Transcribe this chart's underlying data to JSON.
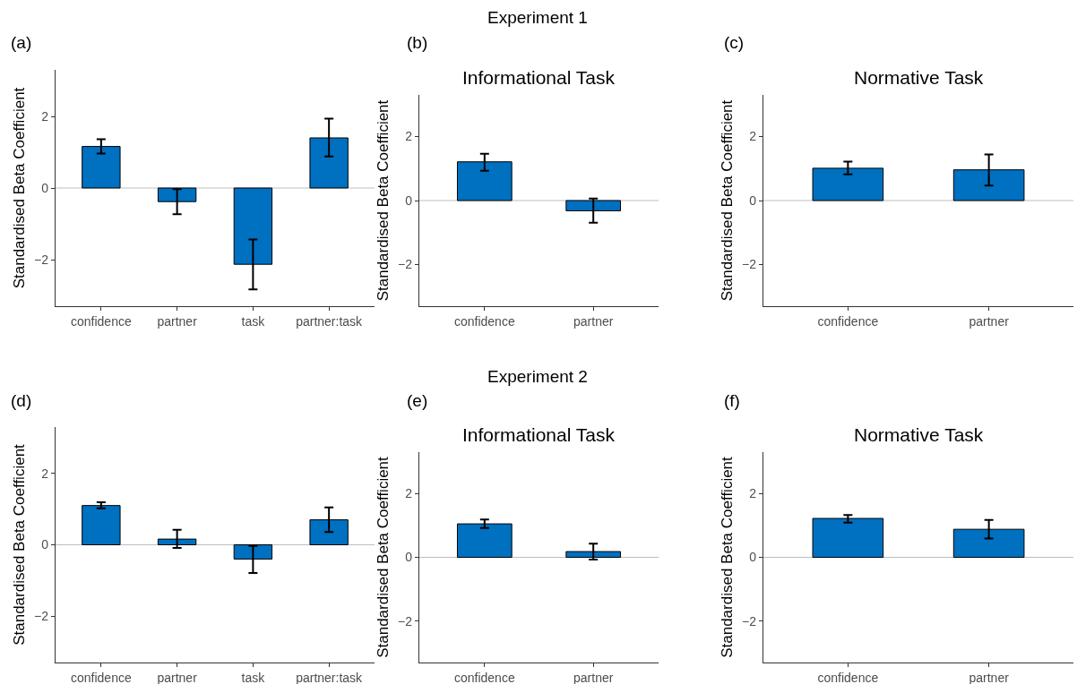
{
  "chart_data": [
    {
      "type": "bar",
      "ylabel": "Standardised Beta Coefficient",
      "annotations": [
        "(a)",
        "Experiment 1"
      ],
      "categories": [
        "confidence",
        "partner",
        "task",
        "partner:task"
      ],
      "values": [
        1.16,
        -0.38,
        -2.13,
        1.4
      ],
      "errors": [
        [
          0.96,
          1.36
        ],
        [
          -0.73,
          -0.03
        ],
        [
          -2.83,
          -1.44
        ],
        [
          0.88,
          1.94
        ]
      ],
      "color": "#0070c0",
      "ylim": [
        -3.3,
        3.3
      ],
      "yticks": [
        -2,
        0,
        2
      ],
      "ref_lines": [
        {
          "axis": "y",
          "value": 0,
          "color": "#bebebe"
        }
      ]
    },
    {
      "type": "bar",
      "title": "Informational Task",
      "ylabel": "Standardised Beta Coefficient",
      "annotations": [
        "(b)"
      ],
      "categories": [
        "confidence",
        "partner"
      ],
      "values": [
        1.21,
        -0.32
      ],
      "errors": [
        [
          0.93,
          1.46
        ],
        [
          -0.69,
          0.06
        ]
      ],
      "color": "#0070c0",
      "ylim": [
        -3.3,
        3.3
      ],
      "yticks": [
        -2,
        0,
        2
      ],
      "ref_lines": [
        {
          "axis": "y",
          "value": 0,
          "color": "#bebebe"
        }
      ]
    },
    {
      "type": "bar",
      "title": "Normative Task",
      "ylabel": "Standardised Beta Coefficient",
      "annotations": [
        "(c)"
      ],
      "categories": [
        "confidence",
        "partner"
      ],
      "values": [
        1.01,
        0.96
      ],
      "errors": [
        [
          0.82,
          1.22
        ],
        [
          0.47,
          1.44
        ]
      ],
      "color": "#0070c0",
      "ylim": [
        -3.3,
        3.3
      ],
      "yticks": [
        -2,
        0,
        2
      ],
      "ref_lines": [
        {
          "axis": "y",
          "value": 0,
          "color": "#bebebe"
        }
      ]
    },
    {
      "type": "bar",
      "ylabel": "Standardised Beta Coefficient",
      "annotations": [
        "(d)",
        "Experiment 2"
      ],
      "categories": [
        "confidence",
        "partner",
        "task",
        "partner:task"
      ],
      "values": [
        1.1,
        0.16,
        -0.4,
        0.7
      ],
      "errors": [
        [
          1.02,
          1.19
        ],
        [
          -0.09,
          0.42
        ],
        [
          -0.79,
          -0.03
        ],
        [
          0.36,
          1.05
        ]
      ],
      "color": "#0070c0",
      "ylim": [
        -3.3,
        3.3
      ],
      "yticks": [
        -2,
        0,
        2
      ],
      "ref_lines": [
        {
          "axis": "y",
          "value": 0,
          "color": "#bebebe"
        }
      ]
    },
    {
      "type": "bar",
      "title": "Informational Task",
      "ylabel": "Standardised Beta Coefficient",
      "annotations": [
        "(e)"
      ],
      "categories": [
        "confidence",
        "partner"
      ],
      "values": [
        1.05,
        0.18
      ],
      "errors": [
        [
          0.92,
          1.19
        ],
        [
          -0.07,
          0.43
        ]
      ],
      "color": "#0070c0",
      "ylim": [
        -3.3,
        3.3
      ],
      "yticks": [
        -2,
        0,
        2
      ],
      "ref_lines": [
        {
          "axis": "y",
          "value": 0,
          "color": "#bebebe"
        }
      ]
    },
    {
      "type": "bar",
      "title": "Normative Task",
      "ylabel": "Standardised Beta Coefficient",
      "annotations": [
        "(f)"
      ],
      "categories": [
        "confidence",
        "partner"
      ],
      "values": [
        1.22,
        0.88
      ],
      "errors": [
        [
          1.09,
          1.33
        ],
        [
          0.59,
          1.17
        ]
      ],
      "color": "#0070c0",
      "ylim": [
        -3.3,
        3.3
      ],
      "yticks": [
        -2,
        0,
        2
      ],
      "ref_lines": [
        {
          "axis": "y",
          "value": 0,
          "color": "#bebebe"
        }
      ]
    }
  ]
}
